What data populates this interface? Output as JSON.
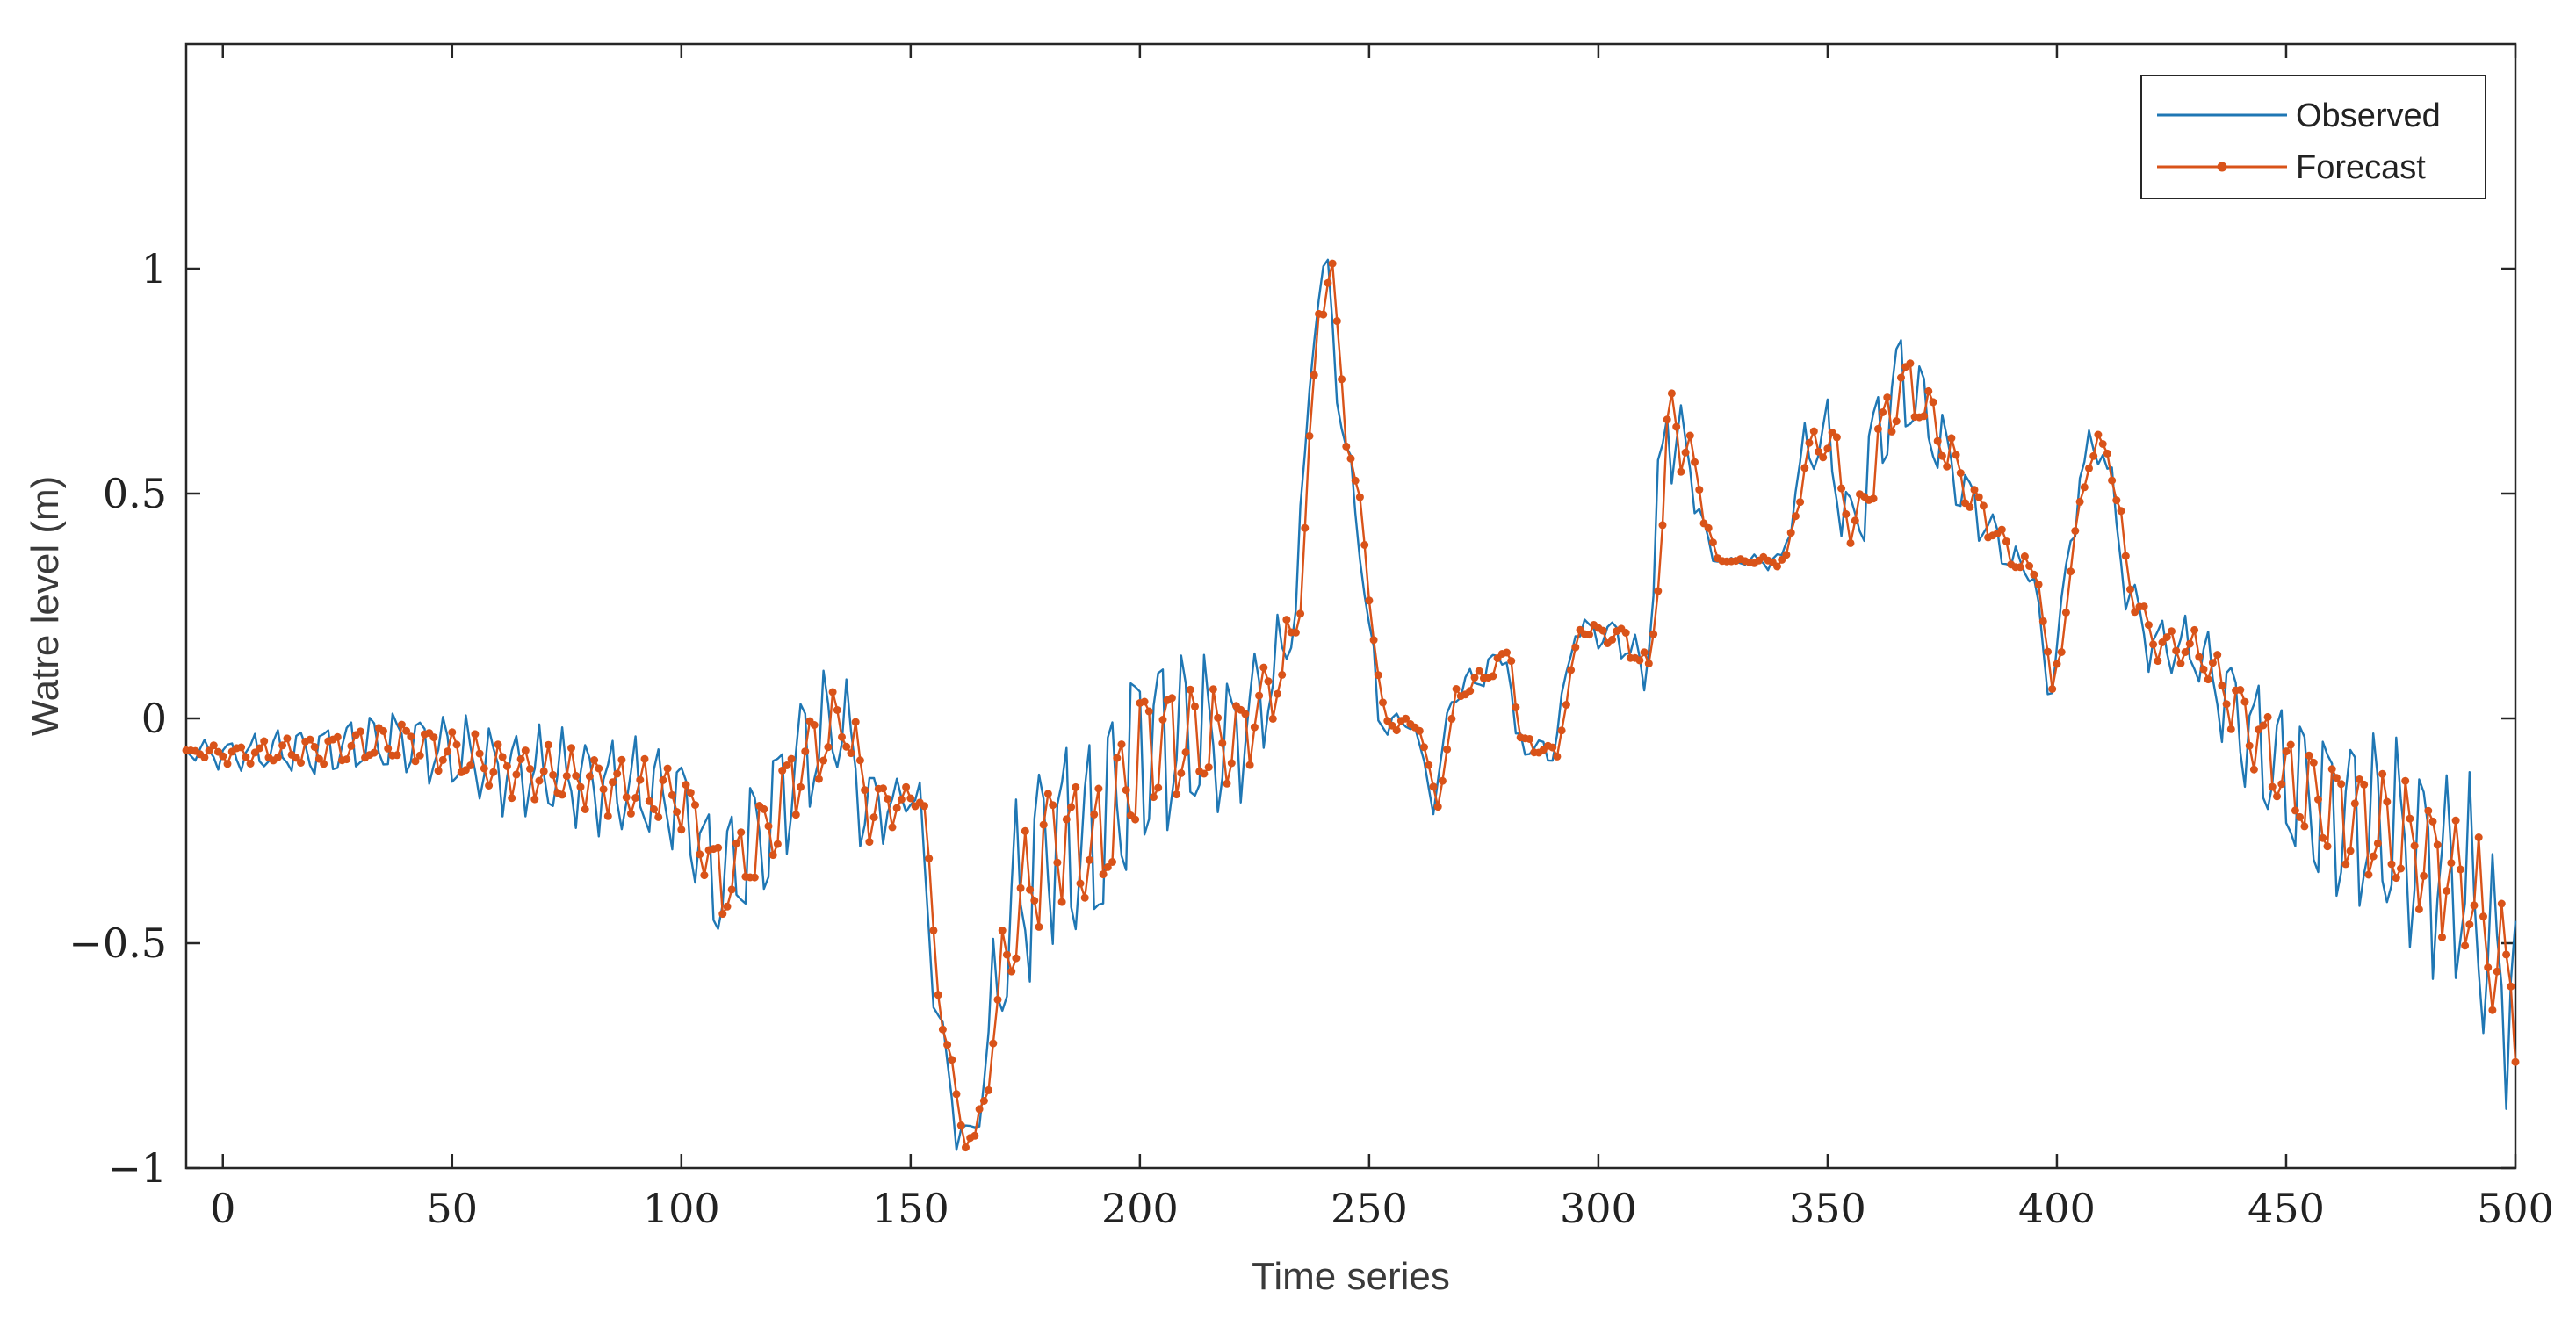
{
  "chart_data": {
    "type": "line",
    "title": "",
    "xlabel": "Time series",
    "ylabel": "Watre level (m)",
    "xlim": [
      -8,
      500
    ],
    "ylim": [
      -1,
      1.5
    ],
    "xticks": [
      0,
      50,
      100,
      150,
      200,
      250,
      300,
      350,
      400,
      450,
      500
    ],
    "xtick_labels": [
      "0",
      "50",
      "100",
      "150",
      "200",
      "250",
      "300",
      "350",
      "400",
      "450",
      "500"
    ],
    "yticks": [
      1,
      0.5,
      0,
      -0.5,
      -1
    ],
    "ytick_labels": [
      "1",
      "0.5",
      "0",
      "−0.5",
      "−1"
    ],
    "legend_position": "top-right",
    "colors": {
      "observed": "#1f77b4",
      "forecast": "#d95319"
    },
    "series": [
      {
        "name": "Observed",
        "marker": "none",
        "trend": [
          [
            -8,
            -0.07
          ],
          [
            0,
            -0.08
          ],
          [
            20,
            -0.07
          ],
          [
            40,
            -0.05
          ],
          [
            60,
            -0.11
          ],
          [
            80,
            -0.14
          ],
          [
            100,
            -0.18
          ],
          [
            108,
            -0.38
          ],
          [
            118,
            -0.25
          ],
          [
            125,
            -0.1
          ],
          [
            135,
            0.0
          ],
          [
            140,
            -0.2
          ],
          [
            150,
            -0.18
          ],
          [
            152,
            -0.18
          ],
          [
            155,
            -0.6
          ],
          [
            160,
            -0.9
          ],
          [
            163,
            -0.95
          ],
          [
            166,
            -0.8
          ],
          [
            170,
            -0.5
          ],
          [
            180,
            -0.25
          ],
          [
            190,
            -0.3
          ],
          [
            200,
            -0.05
          ],
          [
            210,
            -0.05
          ],
          [
            220,
            -0.05
          ],
          [
            230,
            0.1
          ],
          [
            234,
            0.25
          ],
          [
            238,
            0.9
          ],
          [
            241,
            1.0
          ],
          [
            244,
            0.65
          ],
          [
            248,
            0.4
          ],
          [
            252,
            0.0
          ],
          [
            260,
            -0.02
          ],
          [
            262,
            -0.1
          ],
          [
            264,
            -0.2
          ],
          [
            268,
            0.05
          ],
          [
            275,
            0.1
          ],
          [
            280,
            0.15
          ],
          [
            282,
            -0.05
          ],
          [
            290,
            -0.08
          ],
          [
            295,
            0.2
          ],
          [
            305,
            0.18
          ],
          [
            310,
            0.1
          ],
          [
            312,
            0.3
          ],
          [
            315,
            0.7
          ],
          [
            320,
            0.55
          ],
          [
            325,
            0.35
          ],
          [
            340,
            0.35
          ],
          [
            345,
            0.6
          ],
          [
            350,
            0.62
          ],
          [
            355,
            0.4
          ],
          [
            360,
            0.6
          ],
          [
            365,
            0.75
          ],
          [
            370,
            0.7
          ],
          [
            380,
            0.5
          ],
          [
            390,
            0.35
          ],
          [
            395,
            0.32
          ],
          [
            398,
            0.05
          ],
          [
            402,
            0.3
          ],
          [
            405,
            0.55
          ],
          [
            410,
            0.62
          ],
          [
            415,
            0.3
          ],
          [
            420,
            0.17
          ],
          [
            430,
            0.15
          ],
          [
            440,
            0.0
          ],
          [
            450,
            -0.15
          ],
          [
            460,
            -0.2
          ],
          [
            470,
            -0.25
          ],
          [
            480,
            -0.3
          ],
          [
            490,
            -0.4
          ],
          [
            495,
            -0.55
          ],
          [
            500,
            -0.6
          ]
        ],
        "amplitude": [
          [
            -8,
            0.02
          ],
          [
            20,
            0.05
          ],
          [
            60,
            0.08
          ],
          [
            100,
            0.1
          ],
          [
            120,
            0.15
          ],
          [
            140,
            0.1
          ],
          [
            150,
            0.02
          ],
          [
            155,
            0.04
          ],
          [
            166,
            0.05
          ],
          [
            170,
            0.2
          ],
          [
            200,
            0.22
          ],
          [
            230,
            0.1
          ],
          [
            234,
            0.05
          ],
          [
            250,
            0.05
          ],
          [
            260,
            0.0
          ],
          [
            270,
            0.03
          ],
          [
            295,
            0.02
          ],
          [
            310,
            0.05
          ],
          [
            315,
            0.15
          ],
          [
            320,
            0.05
          ],
          [
            325,
            0.0
          ],
          [
            340,
            0.02
          ],
          [
            345,
            0.05
          ],
          [
            360,
            0.12
          ],
          [
            380,
            0.06
          ],
          [
            395,
            0.02
          ],
          [
            400,
            0.05
          ],
          [
            420,
            0.05
          ],
          [
            430,
            0.06
          ],
          [
            440,
            0.12
          ],
          [
            460,
            0.18
          ],
          [
            480,
            0.2
          ],
          [
            500,
            0.22
          ]
        ],
        "period": 5.2
      },
      {
        "name": "Forecast",
        "marker": "dot",
        "lag": 1.8,
        "damping": 0.6
      }
    ]
  }
}
